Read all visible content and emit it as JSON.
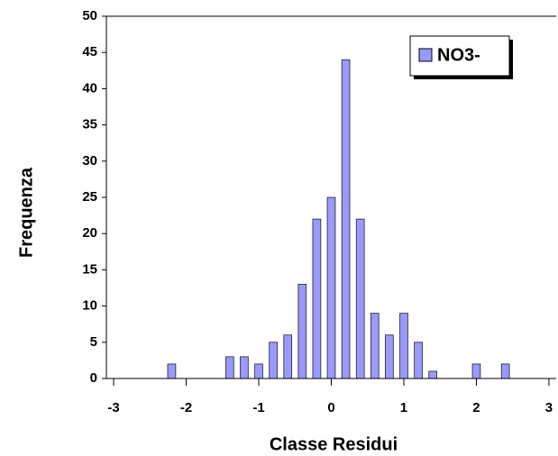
{
  "chart_data": {
    "type": "bar",
    "x_label": "Classe Residui",
    "y_label": "Frequenza",
    "x": [
      -3,
      -2.8,
      -2.6,
      -2.4,
      -2.2,
      -2,
      -1.8,
      -1.6,
      -1.4,
      -1.2,
      -1,
      -0.8,
      -0.6,
      -0.4,
      -0.2,
      0,
      0.2,
      0.4,
      0.6,
      0.8,
      1,
      1.2,
      1.4,
      1.6,
      1.8,
      2,
      2.2,
      2.4,
      2.6,
      2.8,
      3
    ],
    "series": [
      {
        "name": "NO3-",
        "color": "#9999ff",
        "values": [
          0,
          0,
          0,
          0,
          2,
          0,
          0,
          0,
          3,
          3,
          2,
          5,
          6,
          13,
          22,
          25,
          44,
          22,
          9,
          6,
          9,
          5,
          1,
          0,
          0,
          2,
          0,
          2,
          0,
          0,
          0
        ]
      }
    ],
    "xlim": [
      -3.1,
      3.1
    ],
    "xticks": [
      -3,
      -2,
      -1,
      0,
      1,
      2,
      3
    ],
    "ylim": [
      0,
      50
    ],
    "yticks": [
      0,
      5,
      10,
      15,
      20,
      25,
      30,
      35,
      40,
      45,
      50
    ],
    "legend": "top-right"
  }
}
